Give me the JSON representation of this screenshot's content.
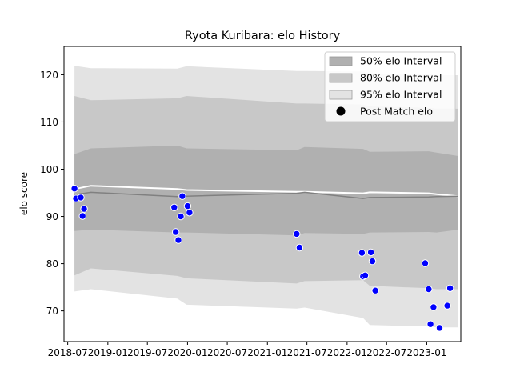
{
  "chart_data": {
    "type": "line",
    "title": "Ryota Kuribara: elo History",
    "xlabel": "",
    "ylabel": "elo score",
    "xlim": [
      "2018-06-14",
      "2023-06-06"
    ],
    "ylim": [
      63.5,
      126
    ],
    "x_ticks": [
      "2018-07",
      "2019-01",
      "2019-07",
      "2020-01",
      "2020-07",
      "2021-01",
      "2021-07",
      "2022-01",
      "2022-07",
      "2023-01"
    ],
    "x_tick_dates": [
      "2018-07-01",
      "2019-01-01",
      "2019-07-01",
      "2020-01-01",
      "2020-07-01",
      "2021-01-01",
      "2021-07-01",
      "2022-01-01",
      "2022-07-01",
      "2023-01-01"
    ],
    "y_ticks": [
      70,
      80,
      90,
      100,
      110,
      120
    ],
    "grid": false,
    "legend_position": "top-right",
    "legend": [
      {
        "label": "50% elo Interval",
        "kind": "band",
        "color": "#b0b0b0"
      },
      {
        "label": "80% elo Interval",
        "kind": "band",
        "color": "#c8c8c8"
      },
      {
        "label": "95% elo Interval",
        "kind": "band",
        "color": "#e3e3e3"
      },
      {
        "label": "Post Match elo",
        "kind": "marker",
        "color": "#000000"
      }
    ],
    "bands_x": [
      "2018-08-01",
      "2018-10-15",
      "2019-11-15",
      "2019-12-28",
      "2021-05-15",
      "2021-06-20",
      "2022-03-15",
      "2022-04-15",
      "2023-01-10",
      "2023-02-15",
      "2023-05-25"
    ],
    "bands": [
      {
        "level": "95%",
        "color": "#e3e3e3",
        "upper": [
          121.9,
          121.4,
          121.3,
          121.8,
          120.8,
          120.8,
          120.7,
          120.2,
          120.2,
          119.9,
          119.9
        ],
        "lower": [
          74.1,
          74.6,
          72.6,
          71.3,
          70.5,
          70.7,
          68.5,
          67.0,
          66.7,
          66.5,
          66.5
        ]
      },
      {
        "level": "80%",
        "color": "#c8c8c8",
        "upper": [
          115.5,
          114.6,
          115.0,
          115.5,
          113.9,
          113.9,
          113.7,
          113.3,
          113.0,
          112.8,
          112.8
        ],
        "lower": [
          77.5,
          79.0,
          77.4,
          76.9,
          75.8,
          76.3,
          76.5,
          75.3,
          74.8,
          74.6,
          74.6
        ]
      },
      {
        "level": "50%",
        "color": "#b0b0b0",
        "upper": [
          103.2,
          104.4,
          105.0,
          104.4,
          104.0,
          104.7,
          104.3,
          103.7,
          103.8,
          103.5,
          102.8
        ],
        "lower": [
          86.9,
          87.2,
          86.6,
          86.6,
          86.0,
          86.5,
          86.3,
          86.6,
          86.7,
          86.6,
          87.2
        ]
      }
    ],
    "series": [
      {
        "name": "",
        "kind": "line",
        "color": "#ffffff",
        "values": [
          95.8,
          96.5,
          95.8,
          95.6,
          95.2,
          95.2,
          94.9,
          95.1,
          94.9,
          94.7,
          94.3
        ]
      },
      {
        "name": "",
        "kind": "line",
        "color": "#808080",
        "values": [
          94.6,
          95.1,
          94.2,
          94.3,
          94.9,
          95.1,
          93.8,
          94.0,
          94.1,
          94.2,
          94.3
        ]
      }
    ],
    "points": [
      {
        "x": "2018-08-01",
        "y": 95.9
      },
      {
        "x": "2018-08-08",
        "y": 93.8
      },
      {
        "x": "2018-08-30",
        "y": 94.0
      },
      {
        "x": "2018-09-07",
        "y": 90.1
      },
      {
        "x": "2018-09-14",
        "y": 91.6
      },
      {
        "x": "2019-11-01",
        "y": 91.9
      },
      {
        "x": "2019-11-08",
        "y": 86.7
      },
      {
        "x": "2019-11-20",
        "y": 85.0
      },
      {
        "x": "2019-12-01",
        "y": 90.0
      },
      {
        "x": "2019-12-08",
        "y": 94.3
      },
      {
        "x": "2020-01-01",
        "y": 92.2
      },
      {
        "x": "2020-01-10",
        "y": 90.8
      },
      {
        "x": "2021-05-15",
        "y": 86.3
      },
      {
        "x": "2021-05-28",
        "y": 83.4
      },
      {
        "x": "2022-03-10",
        "y": 82.3
      },
      {
        "x": "2022-03-15",
        "y": 77.3
      },
      {
        "x": "2022-03-25",
        "y": 77.5
      },
      {
        "x": "2022-04-20",
        "y": 82.4
      },
      {
        "x": "2022-04-27",
        "y": 80.5
      },
      {
        "x": "2022-05-10",
        "y": 74.3
      },
      {
        "x": "2022-12-25",
        "y": 80.1
      },
      {
        "x": "2023-01-10",
        "y": 74.6
      },
      {
        "x": "2023-01-18",
        "y": 67.2
      },
      {
        "x": "2023-02-01",
        "y": 70.8
      },
      {
        "x": "2023-03-01",
        "y": 66.4
      },
      {
        "x": "2023-04-05",
        "y": 71.1
      },
      {
        "x": "2023-04-18",
        "y": 74.8
      }
    ],
    "point_color": "#0000ff",
    "point_edge_color": "#ffffff"
  }
}
